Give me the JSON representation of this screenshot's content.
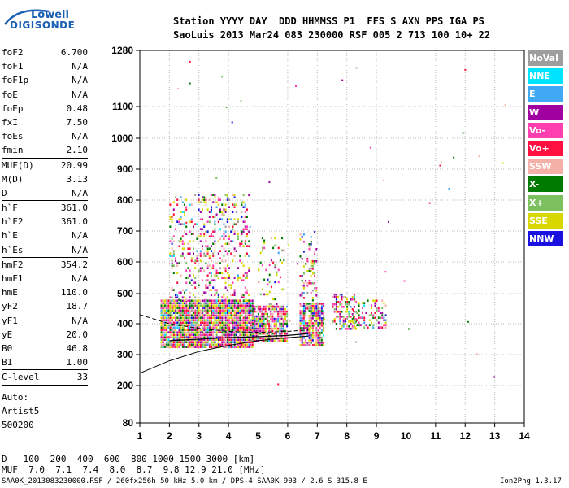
{
  "logo": {
    "line1": "Lowell",
    "line2": "DIGISONDE"
  },
  "header": {
    "row1": "Station YYYY DAY  DDD HHMMSS P1  FFS S AXN PPS IGA PS",
    "row2": "SaoLuis 2013 Mar24 083 230000 RSF 005 2 713 100 10+ 22"
  },
  "params_group1": [
    {
      "label": "foF2",
      "value": "6.700"
    },
    {
      "label": "foF1",
      "value": "N/A"
    },
    {
      "label": "foF1p",
      "value": "N/A"
    },
    {
      "label": "foE",
      "value": "N/A"
    },
    {
      "label": "foEp",
      "value": "0.48"
    },
    {
      "label": "fxI",
      "value": "7.50"
    },
    {
      "label": "foEs",
      "value": "N/A"
    },
    {
      "label": "fmin",
      "value": "2.10"
    }
  ],
  "params_group2": [
    {
      "label": "MUF(D)",
      "value": "20.99"
    },
    {
      "label": "M(D)",
      "value": "3.13"
    },
    {
      "label": "D",
      "value": "N/A"
    }
  ],
  "params_group3": [
    {
      "label": "h`F",
      "value": "361.0"
    },
    {
      "label": "h`F2",
      "value": "361.0"
    },
    {
      "label": "h`E",
      "value": "N/A"
    },
    {
      "label": "h`Es",
      "value": "N/A"
    }
  ],
  "params_group4": [
    {
      "label": "hmF2",
      "value": "354.2"
    },
    {
      "label": "hmF1",
      "value": "N/A"
    },
    {
      "label": "hmE",
      "value": "110.0"
    },
    {
      "label": "yF2",
      "value": "18.7"
    },
    {
      "label": "yF1",
      "value": "N/A"
    },
    {
      "label": "yE",
      "value": "20.0"
    },
    {
      "label": "B0",
      "value": "46.8"
    },
    {
      "label": "B1",
      "value": "1.00"
    }
  ],
  "clevel": {
    "label": "C-level",
    "value": "33"
  },
  "auto": {
    "line1": "Auto:",
    "line2": "Artist5",
    "line3": "500200"
  },
  "legend": [
    {
      "label": "NoVal",
      "color": "#9e9e9e"
    },
    {
      "label": "NNE",
      "color": "#00e5ff"
    },
    {
      "label": "E",
      "color": "#3fa9f5"
    },
    {
      "label": "W",
      "color": "#a000a0"
    },
    {
      "label": "Vo-",
      "color": "#ff3fb0"
    },
    {
      "label": "Vo+",
      "color": "#ff1040"
    },
    {
      "label": "SSW",
      "color": "#f5b0a8"
    },
    {
      "label": "X-",
      "color": "#007a00"
    },
    {
      "label": "X+",
      "color": "#7cc060"
    },
    {
      "label": "SSE",
      "color": "#d8d800"
    },
    {
      "label": "NNW",
      "color": "#1a10e0"
    }
  ],
  "muf_table": {
    "row1": "D   100  200  400  600  800 1000 1500 3000 [km]",
    "row2": "MUF  7.0  7.1  7.4  8.0  8.7  9.8 12.9 21.0 [MHz]"
  },
  "footer": {
    "left": "SAA0K_2013083230000.RSF / 260fx256h 50 kHz 5.0 km / DPS-4 SAA0K 903 / 2.6 S 315.8 E",
    "right": "Ion2Png 1.3.17"
  },
  "chart_data": {
    "type": "scatter",
    "x_ticks": [
      1,
      2,
      3,
      4,
      5,
      6,
      7,
      8,
      9,
      10,
      11,
      12,
      13,
      14
    ],
    "y_ticks": [
      80,
      200,
      300,
      400,
      500,
      600,
      700,
      800,
      900,
      1000,
      1100,
      1280
    ],
    "xlim": [
      1,
      14
    ],
    "ylim": [
      80,
      1280
    ],
    "grid": true,
    "bands": [
      {
        "f0": 1.7,
        "f1": 4.8,
        "h0": 320,
        "h1": 480,
        "density": 0.95
      },
      {
        "f0": 2.0,
        "f1": 4.7,
        "h0": 480,
        "h1": 820,
        "density": 0.22
      },
      {
        "f0": 4.8,
        "f1": 6.0,
        "h0": 340,
        "h1": 460,
        "density": 0.8
      },
      {
        "f0": 5.0,
        "f1": 5.9,
        "h0": 460,
        "h1": 680,
        "density": 0.18
      },
      {
        "f0": 6.4,
        "f1": 7.2,
        "h0": 330,
        "h1": 470,
        "density": 0.85
      },
      {
        "f0": 6.4,
        "f1": 7.0,
        "h0": 470,
        "h1": 700,
        "density": 0.2
      },
      {
        "f0": 7.5,
        "f1": 8.3,
        "h0": 380,
        "h1": 500,
        "density": 0.5
      },
      {
        "f0": 8.2,
        "f1": 9.3,
        "h0": 390,
        "h1": 480,
        "density": 0.35
      }
    ],
    "profile_curve": [
      [
        1.0,
        240
      ],
      [
        2.0,
        280
      ],
      [
        3.0,
        310
      ],
      [
        4.0,
        330
      ],
      [
        5.0,
        345
      ],
      [
        6.0,
        355
      ],
      [
        6.7,
        360
      ]
    ],
    "trace_dashed": [
      [
        1.0,
        430
      ],
      [
        2.0,
        400
      ],
      [
        3.0,
        385
      ],
      [
        4.0,
        375
      ],
      [
        5.0,
        372
      ],
      [
        6.0,
        375
      ],
      [
        6.7,
        380
      ]
    ],
    "trace_solid": [
      [
        2.0,
        345
      ],
      [
        3.0,
        350
      ],
      [
        4.0,
        355
      ],
      [
        5.0,
        358
      ],
      [
        6.0,
        362
      ],
      [
        6.7,
        368
      ]
    ]
  }
}
